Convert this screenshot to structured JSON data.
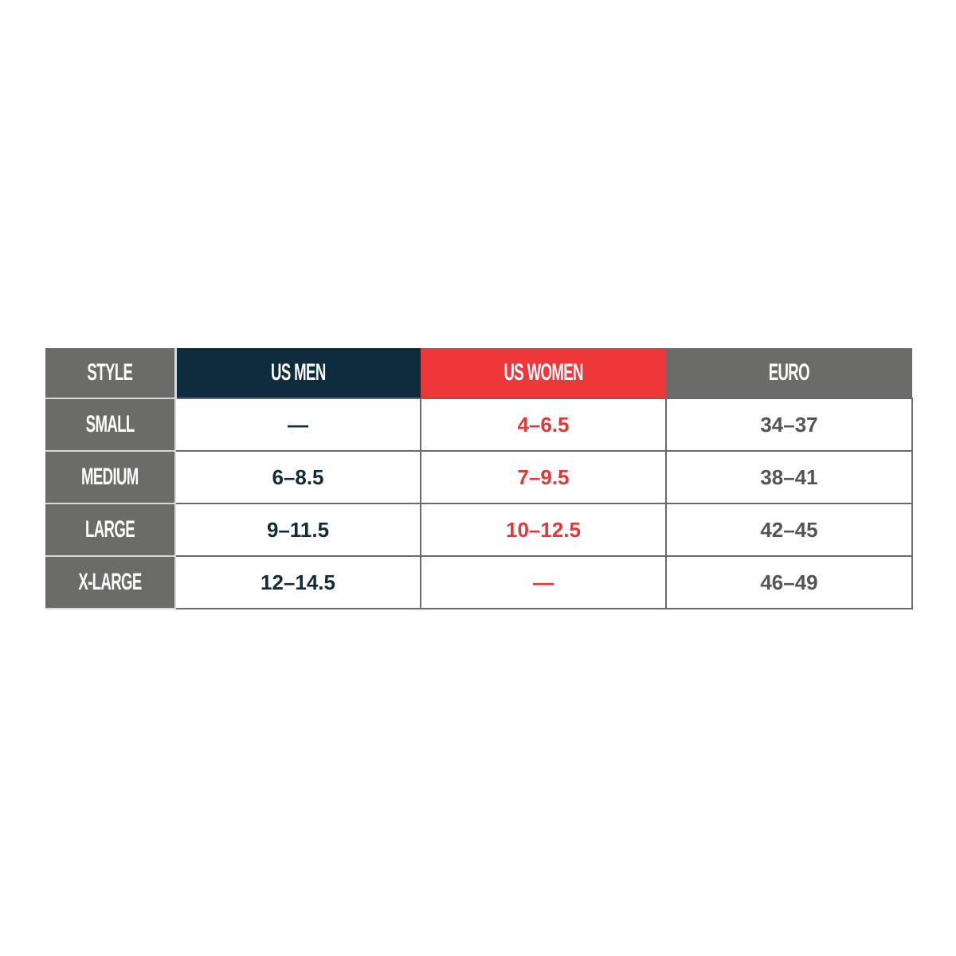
{
  "headers": [
    "STYLE",
    "US MEN",
    "US WOMEN",
    "EURO"
  ],
  "rows": [
    {
      "style": "SMALL",
      "us_men": "—",
      "us_women": "4–6.5",
      "euro": "34–37"
    },
    {
      "style": "MEDIUM",
      "us_men": "6–8.5",
      "us_women": "7–9.5",
      "euro": "38–41"
    },
    {
      "style": "LARGE",
      "us_men": "9–11.5",
      "us_women": "10–12.5",
      "euro": "42–45"
    },
    {
      "style": "X-LARGE",
      "us_men": "12–14.5",
      "us_women": "—",
      "euro": "46–49"
    }
  ],
  "colors": {
    "header_gray": "#6b6b69",
    "us_men": "#0f2b3e",
    "us_women": "#ef373a",
    "women_text": "#e0393b"
  }
}
